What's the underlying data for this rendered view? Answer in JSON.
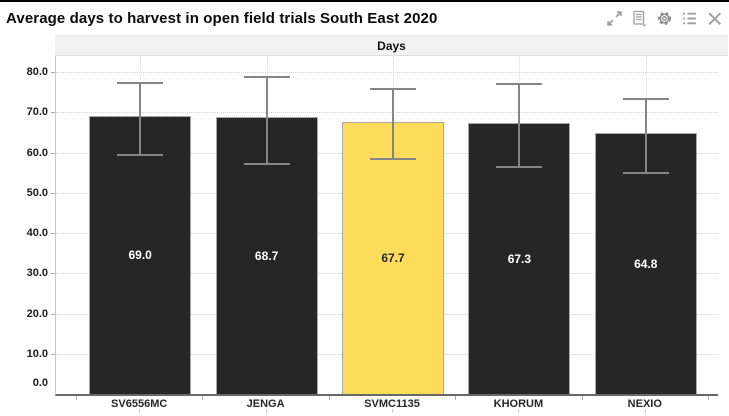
{
  "header": {
    "title": "Average days to harvest in open field trials South East 2020",
    "icons": [
      "expand-icon",
      "report-icon",
      "settings-icon",
      "menu-icon",
      "close-icon"
    ]
  },
  "chart_data": {
    "type": "bar",
    "title": "Days",
    "categories": [
      "SV6556MC",
      "JENGA",
      "SVMC1135",
      "KHORUM",
      "NEXIO"
    ],
    "values": [
      69.0,
      68.7,
      67.7,
      67.3,
      64.8
    ],
    "value_labels": [
      "69.0",
      "68.7",
      "67.7",
      "67.3",
      "64.8"
    ],
    "error_high": [
      77.6,
      79.1,
      76.0,
      77.3,
      73.5
    ],
    "error_low": [
      59.3,
      57.1,
      58.4,
      56.4,
      54.9
    ],
    "bar_colors": [
      "#262626",
      "#262626",
      "#FDDC5C",
      "#262626",
      "#262626"
    ],
    "label_colors": [
      "#FFFFFF",
      "#FFFFFF",
      "#262626",
      "#FFFFFF",
      "#FFFFFF"
    ],
    "highlighted_category": "SVMC1135",
    "xlabel": "",
    "ylabel": "",
    "ylim": [
      0,
      80
    ],
    "ytick_step": 10,
    "ytick_labels": [
      "0.0",
      "10.0",
      "20.0",
      "30.0",
      "40.0",
      "50.0",
      "60.0",
      "70.0",
      "80.0"
    ],
    "grid": "dotted horizontal gridlines every 10 units; dotted vertical gridlines at bar centers",
    "legend": "none",
    "error_bar_color": "#858585"
  },
  "colors": {
    "bar_dark": "#262626",
    "bar_highlight": "#FDDC5C",
    "icon_gray": "#9E9E9E",
    "band_bg": "#F2F2F2",
    "grid": "#D2D2D2",
    "axis_line": "#686868"
  }
}
